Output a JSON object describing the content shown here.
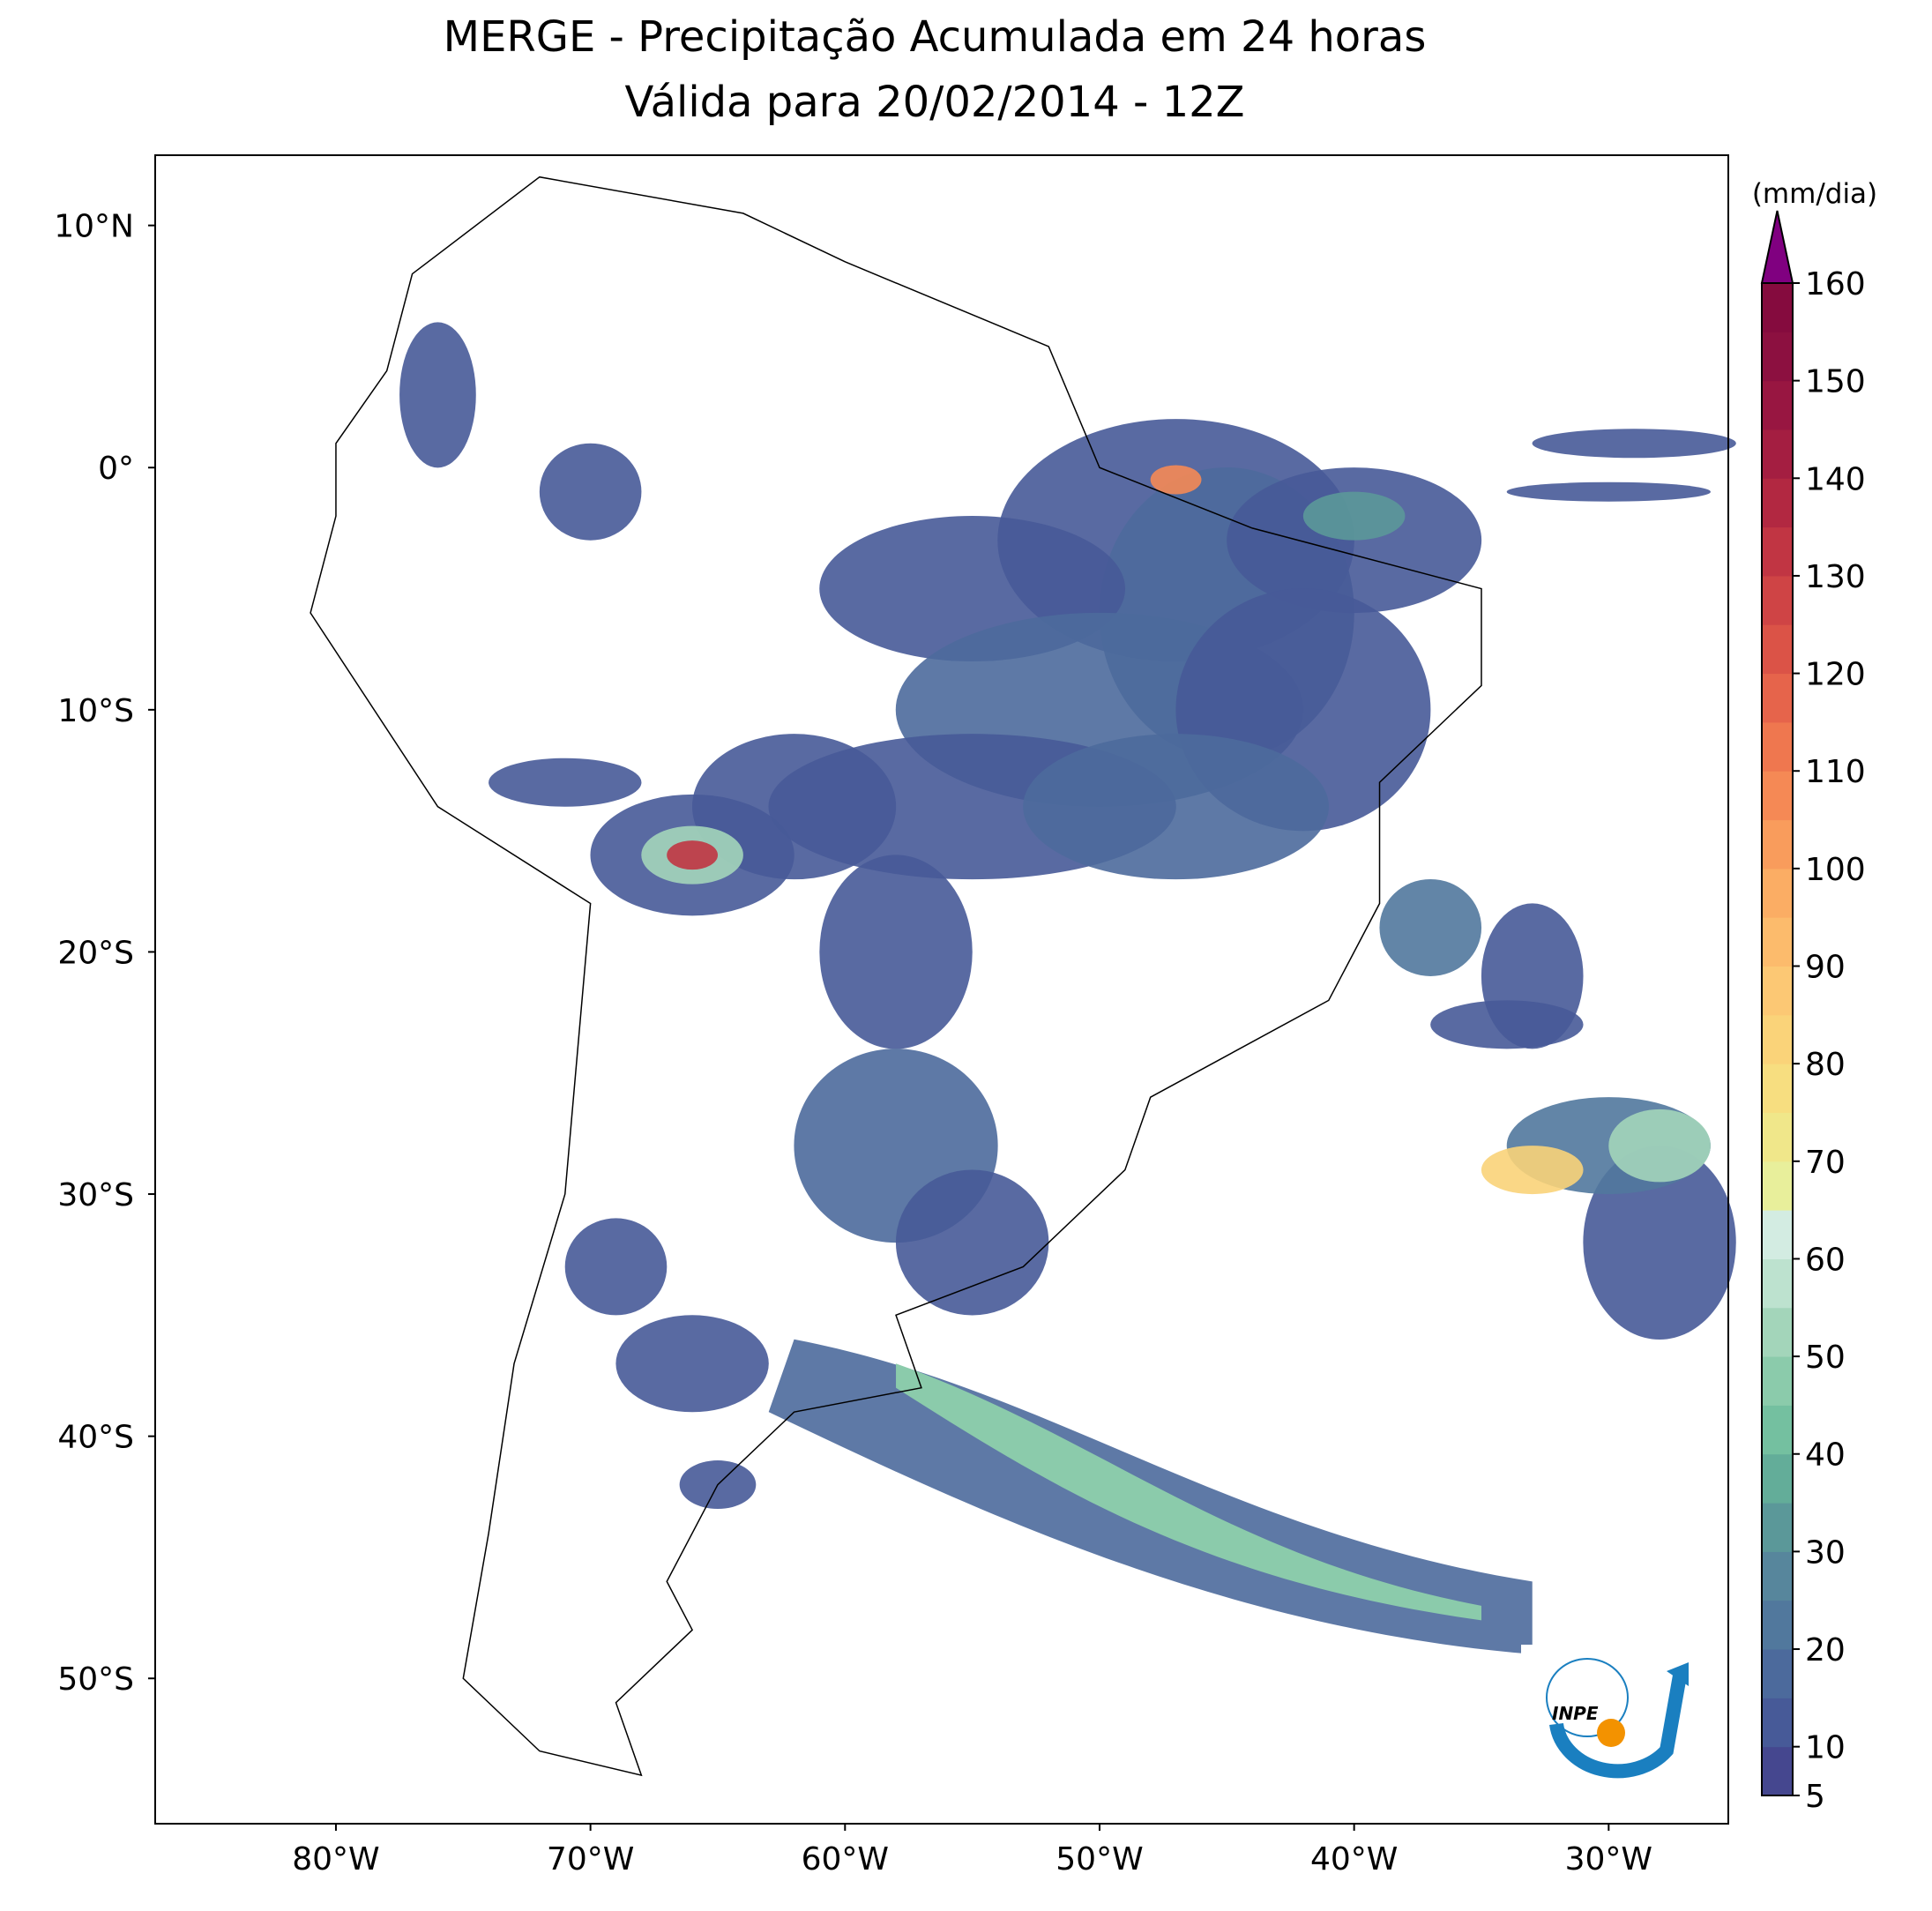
{
  "title": [
    "MERGE - Precipitação Acumulada em 24 horas",
    "Válida para 20/02/2014 - 12Z"
  ],
  "map": {
    "lon_ticks": [
      {
        "value": -80,
        "label": "80°W"
      },
      {
        "value": -70,
        "label": "70°W"
      },
      {
        "value": -60,
        "label": "60°W"
      },
      {
        "value": -50,
        "label": "50°W"
      },
      {
        "value": -40,
        "label": "40°W"
      },
      {
        "value": -30,
        "label": "30°W"
      }
    ],
    "lat_ticks": [
      {
        "value": 10,
        "label": "10°N"
      },
      {
        "value": 0,
        "label": "0°"
      },
      {
        "value": -10,
        "label": "10°S"
      },
      {
        "value": -20,
        "label": "20°S"
      },
      {
        "value": -30,
        "label": "30°S"
      },
      {
        "value": -40,
        "label": "40°S"
      },
      {
        "value": -50,
        "label": "50°S"
      }
    ],
    "lonlim": [
      -87.1,
      -25.3
    ],
    "latlim": [
      -56,
      12.9
    ]
  },
  "colorbar": {
    "label": "(mm/dia)",
    "range": [
      5,
      160
    ],
    "ticks": [
      5,
      10,
      20,
      30,
      40,
      50,
      60,
      70,
      80,
      90,
      100,
      110,
      120,
      130,
      140,
      150,
      160
    ],
    "colors": [
      "#45478f",
      "#475a98",
      "#4c6a9c",
      "#51789d",
      "#57869c",
      "#5b9899",
      "#63ad99",
      "#74c0a0",
      "#8bcbab",
      "#a3d5ba",
      "#bde2cf",
      "#d3ece2",
      "#e8ef9b",
      "#f0e78a",
      "#f7de80",
      "#fad379",
      "#fcc874",
      "#fcbb6c",
      "#fbad64",
      "#f99c5c",
      "#f58955",
      "#ef774f",
      "#e6644b",
      "#db5347",
      "#cf4445",
      "#c13543",
      "#b22841",
      "#a41e41",
      "#981641",
      "#8c1040",
      "#850b3e"
    ],
    "extend_color": "#800080"
  },
  "logo": "INPE"
}
